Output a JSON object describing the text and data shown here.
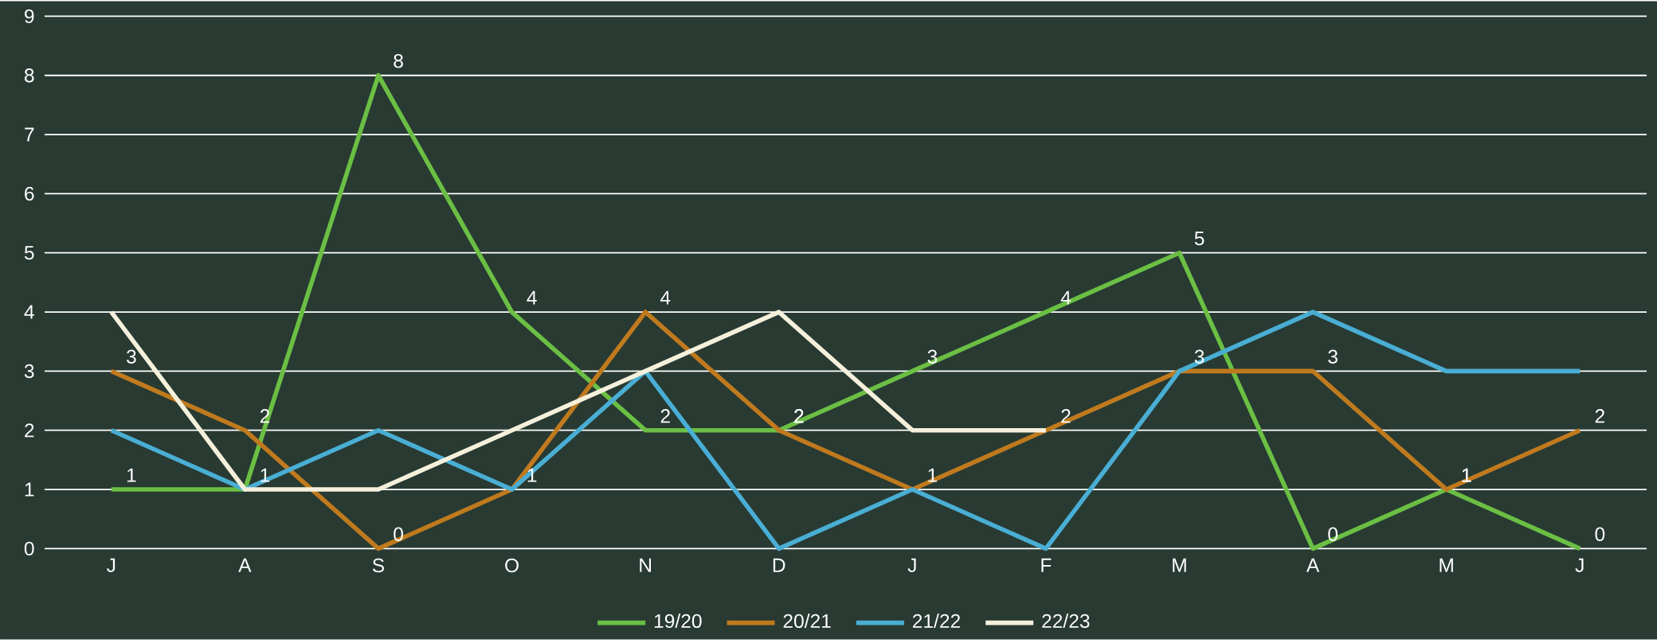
{
  "chart_data": {
    "type": "line",
    "categories": [
      "J",
      "A",
      "S",
      "O",
      "N",
      "D",
      "J",
      "F",
      "M",
      "A",
      "M",
      "J"
    ],
    "series": [
      {
        "name": "19/20",
        "color": "#6bbf44",
        "values": [
          1,
          1,
          8,
          4,
          2,
          2,
          3,
          4,
          5,
          0,
          1,
          0
        ],
        "value_labels": [
          "1",
          "1",
          "8",
          "4",
          "2",
          "2",
          "3",
          "4",
          "5",
          "0",
          "1",
          "0"
        ]
      },
      {
        "name": "20/21",
        "color": "#c07a1e",
        "values": [
          3,
          2,
          0,
          1,
          4,
          2,
          1,
          2,
          3,
          3,
          1,
          2
        ],
        "value_labels": [
          "3",
          "2",
          "0",
          "1",
          "4",
          "2",
          "1",
          "2",
          "3",
          "3",
          "1",
          "2"
        ]
      },
      {
        "name": "21/22",
        "color": "#4aaed4",
        "values": [
          2,
          1,
          2,
          1,
          3,
          0,
          1,
          0,
          3,
          4,
          3,
          3
        ]
      },
      {
        "name": "22/23",
        "color": "#f5f0dc",
        "values": [
          4,
          1,
          1,
          2,
          3,
          4,
          2,
          2,
          null,
          null,
          null,
          null
        ]
      }
    ],
    "ylim": [
      0,
      9
    ],
    "yticks": [
      0,
      1,
      2,
      3,
      4,
      5,
      6,
      7,
      8,
      9
    ],
    "grid": "y",
    "legend": "bottom",
    "marker": "none",
    "line_style": "solid"
  }
}
